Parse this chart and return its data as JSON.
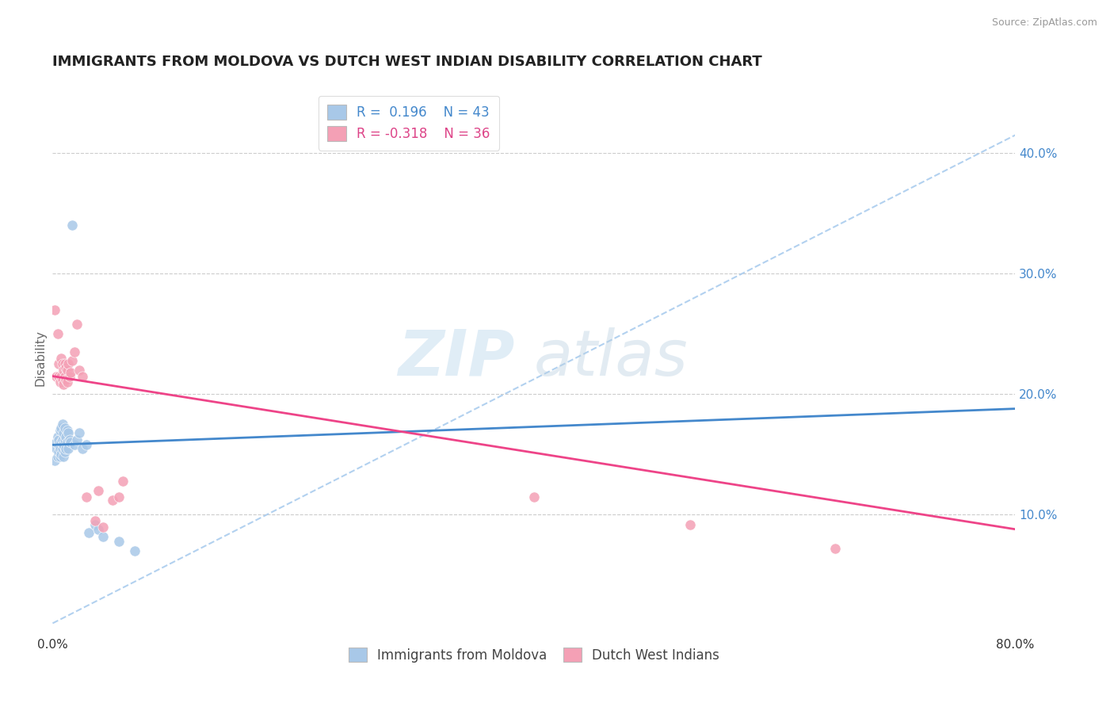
{
  "title": "IMMIGRANTS FROM MOLDOVA VS DUTCH WEST INDIAN DISABILITY CORRELATION CHART",
  "source_text": "Source: ZipAtlas.com",
  "ylabel": "Disability",
  "xlim": [
    0.0,
    0.8
  ],
  "ylim": [
    0.0,
    0.46
  ],
  "xticks": [
    0.0,
    0.1,
    0.2,
    0.3,
    0.4,
    0.5,
    0.6,
    0.7,
    0.8
  ],
  "xticklabels": [
    "0.0%",
    "",
    "",
    "",
    "",
    "",
    "",
    "",
    "80.0%"
  ],
  "yticks_right": [
    0.1,
    0.2,
    0.3,
    0.4
  ],
  "ytick_labels_right": [
    "10.0%",
    "20.0%",
    "30.0%",
    "40.0%"
  ],
  "blue_color": "#a8c8e8",
  "pink_color": "#f4a0b5",
  "blue_line_color": "#4488cc",
  "pink_line_color": "#ee4488",
  "dashed_line_color": "#aaccee",
  "watermark_zip": "ZIP",
  "watermark_atlas": "atlas",
  "blue_scatter_x": [
    0.002,
    0.003,
    0.003,
    0.004,
    0.004,
    0.005,
    0.005,
    0.005,
    0.006,
    0.006,
    0.006,
    0.007,
    0.007,
    0.007,
    0.008,
    0.008,
    0.008,
    0.009,
    0.009,
    0.009,
    0.01,
    0.01,
    0.01,
    0.011,
    0.011,
    0.012,
    0.012,
    0.013,
    0.013,
    0.014,
    0.015,
    0.016,
    0.018,
    0.02,
    0.022,
    0.025,
    0.028,
    0.03,
    0.035,
    0.038,
    0.042,
    0.055,
    0.068
  ],
  "blue_scatter_y": [
    0.145,
    0.155,
    0.16,
    0.148,
    0.165,
    0.152,
    0.158,
    0.162,
    0.148,
    0.155,
    0.17,
    0.15,
    0.16,
    0.172,
    0.155,
    0.162,
    0.175,
    0.148,
    0.158,
    0.168,
    0.152,
    0.162,
    0.172,
    0.155,
    0.165,
    0.16,
    0.17,
    0.155,
    0.168,
    0.162,
    0.16,
    0.34,
    0.158,
    0.162,
    0.168,
    0.155,
    0.158,
    0.085,
    0.092,
    0.088,
    0.082,
    0.078,
    0.07
  ],
  "pink_scatter_x": [
    0.002,
    0.003,
    0.004,
    0.005,
    0.005,
    0.006,
    0.007,
    0.007,
    0.008,
    0.008,
    0.009,
    0.009,
    0.01,
    0.01,
    0.011,
    0.011,
    0.012,
    0.012,
    0.013,
    0.014,
    0.015,
    0.016,
    0.018,
    0.02,
    0.022,
    0.025,
    0.028,
    0.035,
    0.038,
    0.042,
    0.05,
    0.055,
    0.058,
    0.4,
    0.53,
    0.65
  ],
  "pink_scatter_y": [
    0.27,
    0.215,
    0.25,
    0.215,
    0.225,
    0.21,
    0.215,
    0.23,
    0.212,
    0.225,
    0.208,
    0.22,
    0.215,
    0.225,
    0.212,
    0.222,
    0.21,
    0.22,
    0.225,
    0.215,
    0.218,
    0.228,
    0.235,
    0.258,
    0.22,
    0.215,
    0.115,
    0.095,
    0.12,
    0.09,
    0.112,
    0.115,
    0.128,
    0.115,
    0.092,
    0.072
  ],
  "blue_trend_x": [
    0.0,
    0.8
  ],
  "blue_trend_y": [
    0.158,
    0.188
  ],
  "pink_trend_x": [
    0.0,
    0.8
  ],
  "pink_trend_y": [
    0.215,
    0.088
  ],
  "dashed_trend_x": [
    0.0,
    0.8
  ],
  "dashed_trend_y": [
    0.01,
    0.415
  ],
  "grid_color": "#cccccc",
  "bg_color": "#ffffff",
  "title_fontsize": 13,
  "axis_fontsize": 11,
  "tick_fontsize": 11,
  "legend_fontsize": 12
}
